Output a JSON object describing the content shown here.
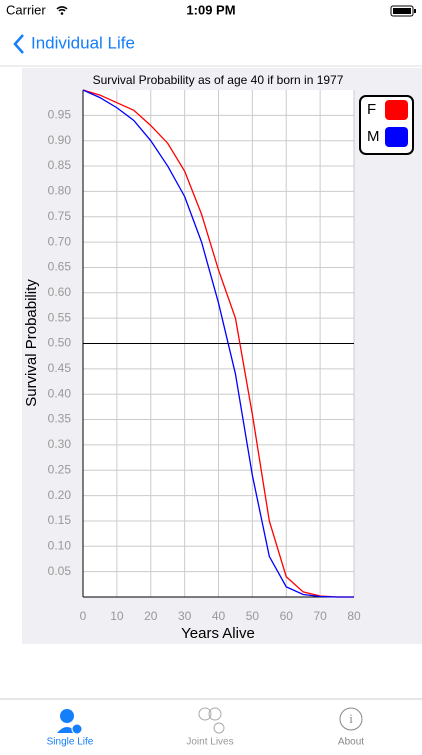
{
  "status_bar": {
    "carrier": "Carrier",
    "time": "1:09 PM"
  },
  "nav": {
    "back": "Individual Life"
  },
  "chart_data": {
    "type": "line",
    "title": "Survival Probability as of age 40 if born in 1977",
    "xlabel": "Years Alive",
    "ylabel": "Survival Probability",
    "x": [
      0,
      5,
      10,
      15,
      20,
      25,
      30,
      35,
      40,
      45,
      50,
      55,
      60,
      65,
      70,
      75,
      80
    ],
    "series": [
      {
        "name": "F",
        "color": "#ff0000",
        "values": [
          1.0,
          0.99,
          0.975,
          0.96,
          0.93,
          0.895,
          0.84,
          0.755,
          0.645,
          0.55,
          0.36,
          0.15,
          0.04,
          0.01,
          0.002,
          0,
          0
        ]
      },
      {
        "name": "M",
        "color": "#0000ff",
        "values": [
          1.0,
          0.985,
          0.965,
          0.94,
          0.9,
          0.85,
          0.79,
          0.7,
          0.58,
          0.44,
          0.24,
          0.08,
          0.02,
          0.005,
          0.001,
          0,
          0
        ]
      }
    ],
    "xlim": [
      0,
      80
    ],
    "xticks": [
      0,
      10,
      20,
      30,
      40,
      50,
      60,
      70,
      80
    ],
    "ylim": [
      0,
      1
    ],
    "yticks": [
      0.05,
      {
        "value": 0.1,
        "label": "0.10"
      },
      0.15,
      {
        "value": 0.2,
        "label": "0.20"
      },
      0.25,
      {
        "value": 0.3,
        "label": "0.30"
      },
      0.35,
      {
        "value": 0.4,
        "label": "0.40"
      },
      0.45,
      {
        "value": 0.5,
        "label": "0.50"
      },
      0.55,
      {
        "value": 0.6,
        "label": "0.60"
      },
      0.65,
      {
        "value": 0.7,
        "label": "0.70"
      },
      0.75,
      {
        "value": 0.8,
        "label": "0.80"
      },
      0.85,
      {
        "value": 0.9,
        "label": "0.90"
      },
      0.95
    ],
    "reference_line": 0.5,
    "grid": true,
    "legend": "upper-right"
  },
  "tab_bar": {
    "items": [
      "Single Life",
      "Joint Lives",
      "About"
    ]
  }
}
